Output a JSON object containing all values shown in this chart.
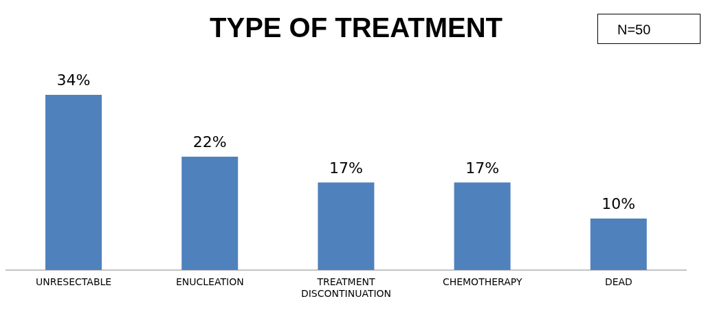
{
  "chart_data": {
    "type": "bar",
    "title": "TYPE OF TREATMENT",
    "annotations": [
      "N=50"
    ],
    "categories": [
      "UNRESECTABLE",
      "ENUCLEATION",
      "TREATMENT DISCONTINUATION",
      "CHEMOTHERAPY",
      "DEAD"
    ],
    "values": [
      34,
      22,
      17,
      17,
      10
    ],
    "color": "#4f81bd",
    "value_labels": [
      "34%",
      "22%",
      "17%",
      "17%",
      "10%"
    ]
  }
}
